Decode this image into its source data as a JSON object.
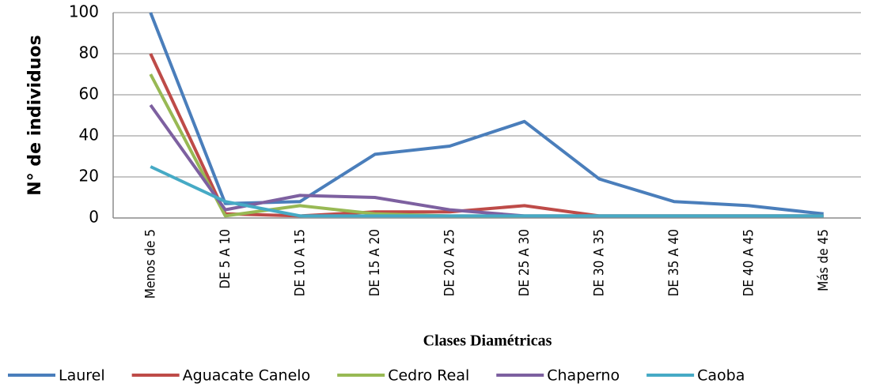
{
  "chart_data": {
    "type": "line",
    "y_axis_label": "N° de individuos",
    "x_axis_label": "Clases Diamétricas",
    "categories": [
      "Menos de 5",
      "DE 5 A 10",
      "DE 10 A 15",
      "DE 15 A 20",
      "DE 20 A 25",
      "DE 25 A 30",
      "DE 30 A 35",
      "DE 35 A 40",
      "DE 40 A 45",
      "Más de 45"
    ],
    "series": [
      {
        "name": "Laurel",
        "color": "#4a7ebb",
        "values": [
          100,
          7,
          8,
          31,
          35,
          47,
          19,
          8,
          6,
          2
        ]
      },
      {
        "name": "Aguacate Canelo",
        "color": "#be4b48",
        "values": [
          80,
          2,
          1,
          3,
          3,
          6,
          1,
          1,
          1,
          1
        ]
      },
      {
        "name": "Cedro Real",
        "color": "#98b954",
        "values": [
          70,
          1,
          6,
          2,
          1,
          1,
          1,
          1,
          1,
          1
        ]
      },
      {
        "name": "Chaperno",
        "color": "#7d60a0",
        "values": [
          55,
          4,
          11,
          10,
          4,
          1,
          1,
          1,
          1,
          1
        ]
      },
      {
        "name": "Caoba",
        "color": "#46aac5",
        "values": [
          25,
          8,
          1,
          1,
          1,
          1,
          1,
          1,
          1,
          1
        ]
      }
    ],
    "ylim": [
      0,
      100
    ],
    "yticks": [
      0,
      20,
      40,
      60,
      80,
      100
    ],
    "grid": true,
    "legend": "bottom"
  }
}
